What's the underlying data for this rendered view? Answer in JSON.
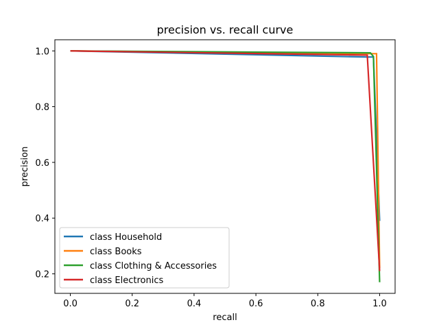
{
  "chart_data": {
    "type": "line",
    "title": "precision vs. recall curve",
    "xlabel": "recall",
    "ylabel": "precision",
    "xlim": [
      -0.05,
      1.05
    ],
    "ylim": [
      0.13,
      1.04
    ],
    "xticks": [
      "0.0",
      "0.2",
      "0.4",
      "0.6",
      "0.8",
      "1.0"
    ],
    "xtick_values": [
      0.0,
      0.2,
      0.4,
      0.6,
      0.8,
      1.0
    ],
    "yticks": [
      "0.2",
      "0.4",
      "0.6",
      "0.8",
      "1.0"
    ],
    "ytick_values": [
      0.2,
      0.4,
      0.6,
      0.8,
      1.0
    ],
    "grid": false,
    "legend_position": "lower-left",
    "series": [
      {
        "name": "class Household",
        "color": "#1f77b4",
        "points": [
          [
            0.0,
            1.0
          ],
          [
            0.96,
            0.978
          ],
          [
            0.98,
            0.978
          ],
          [
            0.98,
            0.977
          ],
          [
            1.0,
            0.39
          ]
        ]
      },
      {
        "name": "class Books",
        "color": "#ff7f0e",
        "points": [
          [
            0.0,
            1.0
          ],
          [
            0.98,
            0.99
          ],
          [
            0.99,
            0.99
          ],
          [
            1.0,
            0.22
          ]
        ]
      },
      {
        "name": "class Clothing & Accessories",
        "color": "#2ca02c",
        "points": [
          [
            0.0,
            1.0
          ],
          [
            0.97,
            0.993
          ],
          [
            0.98,
            0.98
          ],
          [
            1.0,
            0.17
          ]
        ]
      },
      {
        "name": "class Electronics",
        "color": "#d62728",
        "points": [
          [
            0.0,
            1.0
          ],
          [
            0.95,
            0.985
          ],
          [
            0.96,
            0.985
          ],
          [
            1.0,
            0.21
          ]
        ]
      }
    ]
  }
}
